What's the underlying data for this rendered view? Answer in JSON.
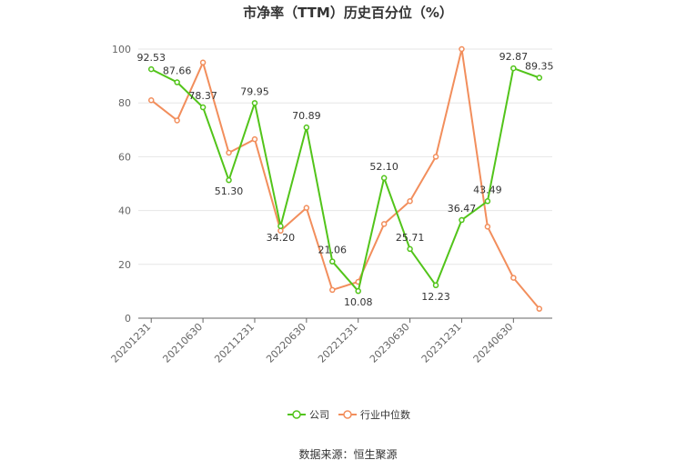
{
  "chart_data": {
    "type": "line",
    "title": "市净率（TTM）历史百分位（%）",
    "ylim": [
      0,
      100
    ],
    "yticks": [
      0,
      20,
      40,
      60,
      80,
      100
    ],
    "grid": true,
    "legend_position": "bottom-center",
    "x": [
      "20201231",
      "20210331",
      "20210630",
      "20210930",
      "20211231",
      "20220331",
      "20220630",
      "20220930",
      "20221231",
      "20230331",
      "20230630",
      "20230930",
      "20231231",
      "20240331",
      "20240630",
      "20240930"
    ],
    "xtick_labels": [
      "20201231",
      "20210630",
      "20211231",
      "20220630",
      "20221231",
      "20230630",
      "20231231",
      "20240630"
    ],
    "series": [
      {
        "name": "公司",
        "color": "#52c41a",
        "values": [
          92.53,
          87.66,
          78.37,
          51.3,
          79.95,
          34.2,
          70.89,
          21.06,
          10.08,
          52.1,
          25.71,
          12.23,
          36.47,
          43.49,
          92.87,
          89.35
        ],
        "labels": [
          "92.53",
          "87.66",
          "78.37",
          "51.30",
          "79.95",
          "34.20",
          "70.89",
          "21.06",
          "10.08",
          "52.10",
          "25.71",
          "12.23",
          "36.47",
          "43.49",
          "92.87",
          "89.35"
        ]
      },
      {
        "name": "行业中位数",
        "color": "#f28e5c",
        "values": [
          81,
          73.5,
          95,
          61.5,
          66.5,
          32.5,
          41,
          10.5,
          13.5,
          35,
          43.5,
          60,
          100,
          34,
          15,
          3.5
        ]
      }
    ]
  },
  "source": "数据来源：恒生聚源"
}
